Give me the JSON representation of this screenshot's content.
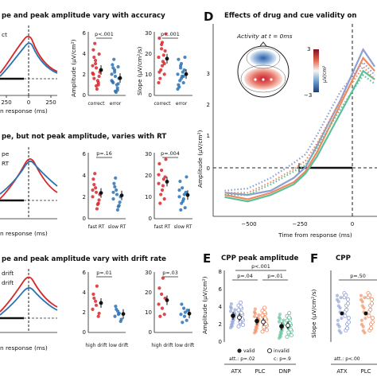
{
  "panels": {
    "row1": {
      "title": "pe and peak amplitude vary with accuracy",
      "legend_line1": "ct",
      "xlabel": "n response (ms)",
      "x_ticks": [
        "250",
        "0",
        "250"
      ],
      "amp_ylabel": "Amplitude (µV/cm²)",
      "slope_ylabel": "Slope (µV/cm²/s)",
      "amp_pval": "p<.001",
      "slope_pval": "p<.001",
      "amp_ticks": [
        "0",
        "2",
        "4",
        "6"
      ],
      "slope_ticks": [
        "0",
        "10",
        "20",
        "30"
      ],
      "cats": [
        "correct",
        "error"
      ]
    },
    "row2": {
      "title": "pe, but not peak amplitude, varies with RT",
      "legend_line1": "pe",
      "legend_line2": "RT",
      "xlabel": "n response (ms)",
      "amp_pval": "p=.16",
      "slope_pval": "p=.004",
      "amp_ticks": [
        "0",
        "2",
        "4",
        "6"
      ],
      "slope_ticks": [
        "0",
        "10",
        "20",
        "30"
      ],
      "cats": [
        "fast RT",
        "slow RT"
      ]
    },
    "row3": {
      "title": "pe and peak amplitude vary with drift rate",
      "legend_line1": "drift",
      "legend_line2": "drift",
      "xlabel": "n response (ms)",
      "amp_pval": "p=.01",
      "slope_pval": "p=.03",
      "amp_ticks": [
        "0",
        "2",
        "4",
        "6"
      ],
      "slope_ticks": [
        "0",
        "10",
        "20",
        "30"
      ],
      "cats": [
        "high drift",
        "low drift"
      ]
    },
    "D": {
      "letter": "D",
      "title": "Effects of drug and cue validity on",
      "inset_title": "Activity at t = 0ms",
      "colorbar_top": "3",
      "colorbar_bottom": "−3",
      "colorbar_unit": "µV/cm²",
      "ylabel": "Amplitude (µV/cm²)",
      "xlabel": "Time from response (ms)",
      "x_ticks": [
        "−500",
        "−250",
        "0"
      ],
      "y_ticks": [
        "0",
        "1",
        "2",
        "3"
      ]
    },
    "E": {
      "letter": "E",
      "title": "CPP peak amplitude",
      "ylabel": "Amplitude (µV/cm²)",
      "y_ticks": [
        "0",
        "2",
        "4",
        "6",
        "8"
      ],
      "pval_top": "p<.001",
      "pval_left": "p=.04",
      "pval_right": "p=.01",
      "legend_valid": "valid",
      "legend_invalid": "invalid",
      "att_line": "att.: p=.02",
      "att_line2": "c: p=.9",
      "groups": [
        "ATX",
        "PLC",
        "DNP"
      ]
    },
    "F": {
      "letter": "F",
      "title": "CPP",
      "ylabel": "Slope (µV/cm²/s)",
      "pval": "p=.50",
      "att_line": "att.: p<.00",
      "groups": [
        "ATX",
        "PLC"
      ]
    }
  },
  "colors": {
    "red": "#d6282b",
    "blue": "#2c73b4",
    "atx": "#8c9ed2",
    "plc": "#ef8a5e",
    "dnp": "#5dbf99"
  },
  "chart_data": [
    {
      "type": "scatter",
      "panel": "row1-amplitude",
      "categories": [
        "correct",
        "error"
      ],
      "series": [
        {
          "values": [
            2.1,
            3.0,
            1.2,
            4.3,
            2.6,
            1.8,
            3.6,
            0.6,
            2.2,
            4.9,
            1.4,
            2.8,
            3.3,
            1.0,
            2.0,
            0.9,
            3.9,
            1.6
          ]
        },
        {
          "values": [
            1.4,
            2.2,
            0.7,
            2.9,
            1.8,
            1.1,
            2.6,
            0.3,
            1.6,
            3.4,
            1.0,
            2.0,
            2.4,
            0.5,
            1.3,
            0.4,
            2.7,
            1.2
          ]
        }
      ],
      "ylim": [
        0,
        6
      ]
    },
    {
      "type": "scatter",
      "panel": "row1-slope",
      "categories": [
        "correct",
        "error"
      ],
      "series": [
        {
          "values": [
            18,
            24,
            10,
            27,
            14,
            21,
            8,
            16,
            29,
            12,
            19,
            6,
            22,
            15,
            11,
            25
          ]
        },
        {
          "values": [
            10,
            14,
            6,
            17,
            8,
            12,
            4,
            9,
            18,
            7,
            11,
            3,
            13,
            9,
            5,
            15
          ]
        }
      ],
      "ylim": [
        0,
        30
      ]
    },
    {
      "type": "scatter",
      "panel": "row2-amplitude",
      "categories": [
        "fast RT",
        "slow RT"
      ],
      "series": [
        {
          "values": [
            2.0,
            2.8,
            1.4,
            3.6,
            2.4,
            1.7,
            3.1,
            0.9,
            2.2,
            4.1,
            1.3,
            2.6
          ]
        },
        {
          "values": [
            1.8,
            2.6,
            1.2,
            3.2,
            2.2,
            1.5,
            2.9,
            0.8,
            2.0,
            3.7,
            1.1,
            2.4
          ]
        }
      ],
      "ylim": [
        0,
        6
      ]
    },
    {
      "type": "scatter",
      "panel": "row2-slope",
      "categories": [
        "fast RT",
        "slow RT"
      ],
      "series": [
        {
          "values": [
            16,
            22,
            9,
            25,
            13,
            19,
            7,
            15,
            27,
            11,
            18,
            20
          ]
        },
        {
          "values": [
            10,
            14,
            5,
            17,
            8,
            12,
            4,
            9,
            19,
            7,
            11,
            13
          ]
        }
      ],
      "ylim": [
        0,
        30
      ]
    },
    {
      "type": "scatter",
      "panel": "row3-amplitude",
      "categories": [
        "high drift",
        "low drift"
      ],
      "series": [
        {
          "values": [
            2.3,
            3.1,
            1.6,
            3.8,
            2.7,
            1.9,
            3.4,
            4.6
          ]
        },
        {
          "values": [
            1.6,
            2.1,
            1.1,
            2.6,
            1.8,
            1.3,
            2.3,
            1.9
          ]
        }
      ],
      "ylim": [
        0,
        6
      ]
    },
    {
      "type": "scatter",
      "panel": "row3-slope",
      "categories": [
        "high drift",
        "low drift"
      ],
      "series": [
        {
          "values": [
            14,
            19,
            9,
            22,
            12,
            17,
            8,
            27
          ]
        },
        {
          "values": [
            9,
            12,
            6,
            14,
            8,
            11,
            5,
            10
          ]
        }
      ],
      "ylim": [
        0,
        30
      ]
    },
    {
      "type": "line",
      "panel": "D",
      "x": [
        -600,
        -500,
        -400,
        -300,
        -250,
        -200,
        -100,
        0,
        50
      ],
      "series": [
        {
          "values": [
            -0.55,
            -0.6,
            -0.5,
            -0.2,
            0.05,
            0.55,
            1.6,
            2.8,
            2.4
          ]
        },
        {
          "values": [
            -0.6,
            -0.7,
            -0.55,
            -0.3,
            -0.05,
            0.4,
            1.5,
            2.6,
            2.3
          ]
        },
        {
          "values": [
            -0.65,
            -0.75,
            -0.6,
            -0.35,
            -0.1,
            0.3,
            1.3,
            2.3,
            2.1
          ]
        },
        {
          "values": [
            -0.5,
            -0.45,
            -0.2,
            0.15,
            0.35,
            0.8,
            1.8,
            2.5,
            2.2
          ]
        },
        {
          "values": [
            -0.55,
            -0.55,
            -0.3,
            0.0,
            0.2,
            0.6,
            1.6,
            2.4,
            2.1
          ]
        },
        {
          "values": [
            -0.6,
            -0.6,
            -0.35,
            -0.05,
            0.1,
            0.5,
            1.4,
            2.2,
            2.0
          ]
        }
      ],
      "xlim": [
        -650,
        60
      ],
      "ylim": [
        -1.1,
        3.4
      ]
    },
    {
      "type": "scatter",
      "panel": "E",
      "categories": [
        "ATX",
        "PLC",
        "DNP"
      ],
      "series": [
        {
          "values": [
            3.0,
            2.4,
            1.8
          ]
        },
        {
          "values": [
            2.8,
            2.3,
            1.9
          ]
        }
      ],
      "ylim": [
        0,
        8
      ]
    }
  ]
}
